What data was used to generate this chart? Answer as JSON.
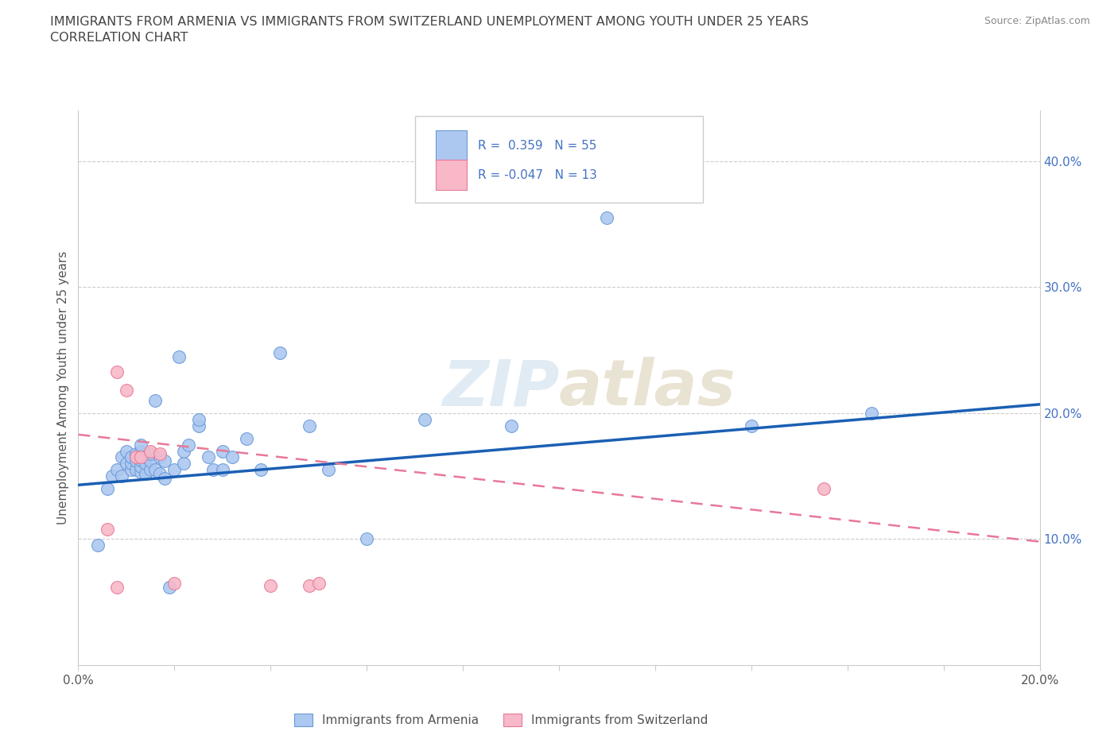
{
  "title_line1": "IMMIGRANTS FROM ARMENIA VS IMMIGRANTS FROM SWITZERLAND UNEMPLOYMENT AMONG YOUTH UNDER 25 YEARS",
  "title_line2": "CORRELATION CHART",
  "source": "Source: ZipAtlas.com",
  "ylabel": "Unemployment Among Youth under 25 years",
  "xlim": [
    0.0,
    0.2
  ],
  "ylim": [
    0.0,
    0.44
  ],
  "yticks_right": [
    0.1,
    0.2,
    0.3,
    0.4
  ],
  "r_armenia": 0.359,
  "n_armenia": 55,
  "r_switzerland": -0.047,
  "n_switzerland": 13,
  "armenia_color": "#adc8f0",
  "armenia_edge": "#6899d8",
  "switzerland_color": "#f8b8c8",
  "switzerland_edge": "#e87898",
  "regression_armenia_color": "#1a5fb4",
  "regression_switzerland_color": "#e87898",
  "armenia_x": [
    0.004,
    0.006,
    0.007,
    0.008,
    0.009,
    0.009,
    0.01,
    0.01,
    0.011,
    0.011,
    0.011,
    0.012,
    0.012,
    0.012,
    0.013,
    0.013,
    0.013,
    0.013,
    0.013,
    0.014,
    0.014,
    0.014,
    0.015,
    0.015,
    0.015,
    0.016,
    0.016,
    0.017,
    0.017,
    0.018,
    0.018,
    0.019,
    0.02,
    0.021,
    0.022,
    0.022,
    0.023,
    0.025,
    0.025,
    0.027,
    0.028,
    0.03,
    0.03,
    0.032,
    0.035,
    0.038,
    0.042,
    0.048,
    0.052,
    0.06,
    0.072,
    0.09,
    0.11,
    0.14,
    0.165
  ],
  "armenia_y": [
    0.095,
    0.14,
    0.15,
    0.155,
    0.15,
    0.165,
    0.16,
    0.17,
    0.155,
    0.16,
    0.165,
    0.155,
    0.162,
    0.168,
    0.153,
    0.158,
    0.163,
    0.17,
    0.175,
    0.152,
    0.16,
    0.165,
    0.155,
    0.162,
    0.168,
    0.21,
    0.155,
    0.152,
    0.165,
    0.148,
    0.162,
    0.062,
    0.155,
    0.245,
    0.16,
    0.17,
    0.175,
    0.19,
    0.195,
    0.165,
    0.155,
    0.155,
    0.17,
    0.165,
    0.18,
    0.155,
    0.248,
    0.19,
    0.155,
    0.1,
    0.195,
    0.19,
    0.355,
    0.19,
    0.2
  ],
  "switzerland_x": [
    0.006,
    0.008,
    0.01,
    0.012,
    0.013,
    0.015,
    0.017,
    0.02,
    0.04,
    0.048,
    0.05,
    0.155,
    0.008
  ],
  "switzerland_y": [
    0.108,
    0.233,
    0.218,
    0.165,
    0.165,
    0.17,
    0.168,
    0.065,
    0.063,
    0.063,
    0.065,
    0.14,
    0.062
  ],
  "armenia_trendline_x": [
    0.0,
    0.2
  ],
  "armenia_trendline_y": [
    0.143,
    0.207
  ],
  "switzerland_trendline_x": [
    0.0,
    0.2
  ],
  "switzerland_trendline_y": [
    0.183,
    0.098
  ]
}
